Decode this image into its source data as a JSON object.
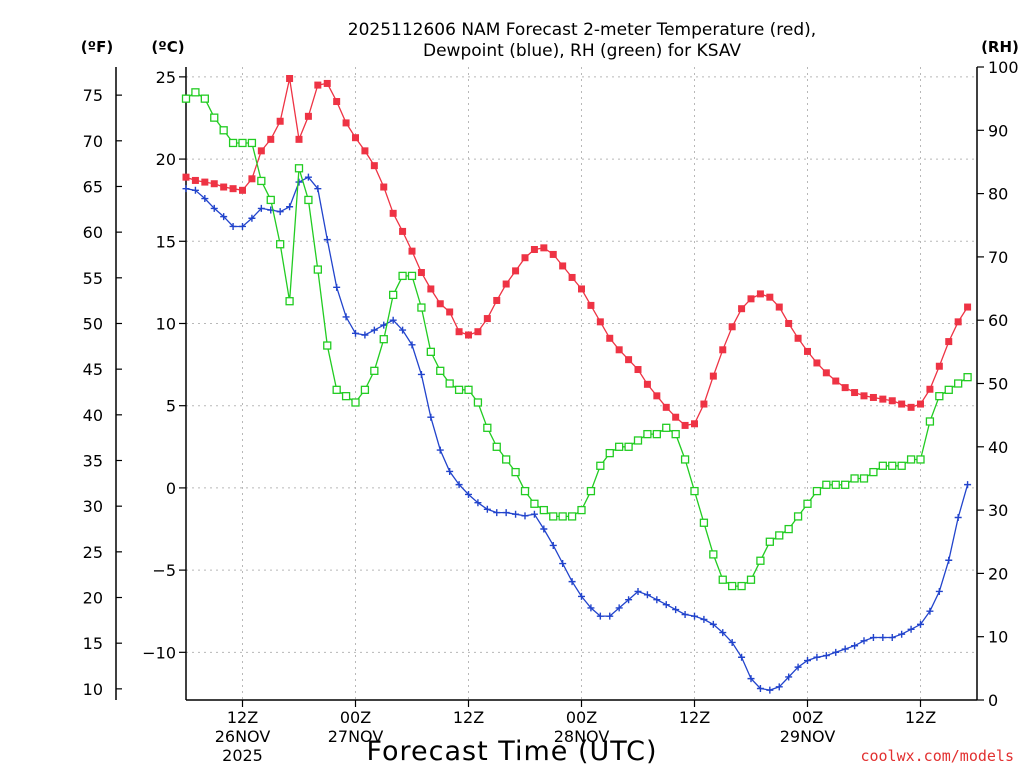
{
  "chart_data": {
    "type": "line",
    "title_line1": "2025112606 NAM Forecast 2-meter Temperature (red),",
    "title_line2": "Dewpoint (blue), RH (green) for KSAV",
    "xlabel": "Forecast Time (UTC)",
    "credit": "coolwx.com/models",
    "left_outer_label": "(ºF)",
    "left_inner_label": "(ºC)",
    "right_label": "(RH)",
    "x_range_hours": [
      0,
      84
    ],
    "celsius_ylim": [
      -12.9,
      25.6
    ],
    "fahrenheit_ticks": [
      10,
      15,
      20,
      25,
      30,
      35,
      40,
      45,
      50,
      55,
      60,
      65,
      70,
      75
    ],
    "celsius_ticks": [
      -10,
      -5,
      0,
      5,
      10,
      15,
      20,
      25
    ],
    "rh_ylim": [
      0,
      100
    ],
    "rh_ticks": [
      0,
      10,
      20,
      30,
      40,
      50,
      60,
      70,
      80,
      90,
      100
    ],
    "x_ticks": [
      {
        "hour": 6,
        "line1": "12Z",
        "line2": "26NOV",
        "line3": "2025"
      },
      {
        "hour": 18,
        "line1": "00Z",
        "line2": "27NOV",
        "line3": ""
      },
      {
        "hour": 30,
        "line1": "12Z",
        "line2": "",
        "line3": ""
      },
      {
        "hour": 42,
        "line1": "00Z",
        "line2": "28NOV",
        "line3": ""
      },
      {
        "hour": 54,
        "line1": "12Z",
        "line2": "",
        "line3": ""
      },
      {
        "hour": 66,
        "line1": "00Z",
        "line2": "29NOV",
        "line3": ""
      },
      {
        "hour": 78,
        "line1": "12Z",
        "line2": "",
        "line3": ""
      }
    ],
    "grid": true,
    "series": [
      {
        "name": "Temperature",
        "color": "#ee3344",
        "marker": "filled-square",
        "axis": "celsius",
        "values": [
          18.9,
          18.7,
          18.6,
          18.5,
          18.3,
          18.2,
          18.1,
          18.8,
          20.5,
          21.2,
          22.3,
          24.9,
          21.2,
          22.6,
          24.5,
          24.6,
          23.5,
          22.2,
          21.3,
          20.5,
          19.6,
          18.3,
          16.7,
          15.6,
          14.4,
          13.1,
          12.1,
          11.2,
          10.7,
          9.5,
          9.3,
          9.5,
          10.3,
          11.4,
          12.4,
          13.2,
          14.0,
          14.5,
          14.6,
          14.2,
          13.5,
          12.8,
          12.1,
          11.1,
          10.1,
          9.1,
          8.4,
          7.8,
          7.2,
          6.3,
          5.6,
          4.9,
          4.3,
          3.8,
          3.9,
          5.1,
          6.8,
          8.4,
          9.8,
          10.9,
          11.5,
          11.8,
          11.6,
          11.0,
          10.0,
          9.1,
          8.3,
          7.6,
          7.0,
          6.5,
          6.1,
          5.8,
          5.6,
          5.5,
          5.4,
          5.3,
          5.1,
          4.9,
          5.1,
          6.0,
          7.4,
          8.9,
          10.1,
          11.0
        ]
      },
      {
        "name": "Dewpoint",
        "color": "#2244cc",
        "marker": "plus",
        "axis": "celsius",
        "values": [
          18.2,
          18.1,
          17.6,
          17.0,
          16.5,
          15.9,
          15.9,
          16.4,
          17.0,
          16.9,
          16.8,
          17.1,
          18.6,
          18.9,
          18.2,
          15.1,
          12.2,
          10.4,
          9.4,
          9.3,
          9.6,
          9.9,
          10.2,
          9.6,
          8.7,
          6.9,
          4.3,
          2.3,
          1.0,
          0.2,
          -0.4,
          -0.9,
          -1.3,
          -1.5,
          -1.5,
          -1.6,
          -1.7,
          -1.6,
          -2.5,
          -3.5,
          -4.6,
          -5.7,
          -6.6,
          -7.3,
          -7.8,
          -7.8,
          -7.3,
          -6.8,
          -6.3,
          -6.5,
          -6.8,
          -7.1,
          -7.4,
          -7.7,
          -7.8,
          -8.0,
          -8.3,
          -8.8,
          -9.4,
          -10.3,
          -11.6,
          -12.2,
          -12.3,
          -12.1,
          -11.5,
          -10.9,
          -10.5,
          -10.3,
          -10.2,
          -10.0,
          -9.8,
          -9.6,
          -9.3,
          -9.1,
          -9.1,
          -9.1,
          -8.9,
          -8.6,
          -8.3,
          -7.5,
          -6.3,
          -4.4,
          -1.8,
          0.2
        ]
      },
      {
        "name": "RH",
        "color": "#22cc22",
        "marker": "open-square",
        "axis": "rh",
        "values": [
          95,
          96,
          95,
          92,
          90,
          88,
          88,
          88,
          82,
          79,
          72,
          63,
          84,
          79,
          68,
          56,
          49,
          48,
          47,
          49,
          52,
          57,
          64,
          67,
          67,
          62,
          55,
          52,
          50,
          49,
          49,
          47,
          43,
          40,
          38,
          36,
          33,
          31,
          30,
          29,
          29,
          29,
          30,
          33,
          37,
          39,
          40,
          40,
          41,
          42,
          42,
          43,
          42,
          38,
          33,
          28,
          23,
          19,
          18,
          18,
          19,
          22,
          25,
          26,
          27,
          29,
          31,
          33,
          34,
          34,
          34,
          35,
          35,
          36,
          37,
          37,
          37,
          38,
          38,
          44,
          48,
          49,
          50,
          51
        ]
      }
    ]
  }
}
